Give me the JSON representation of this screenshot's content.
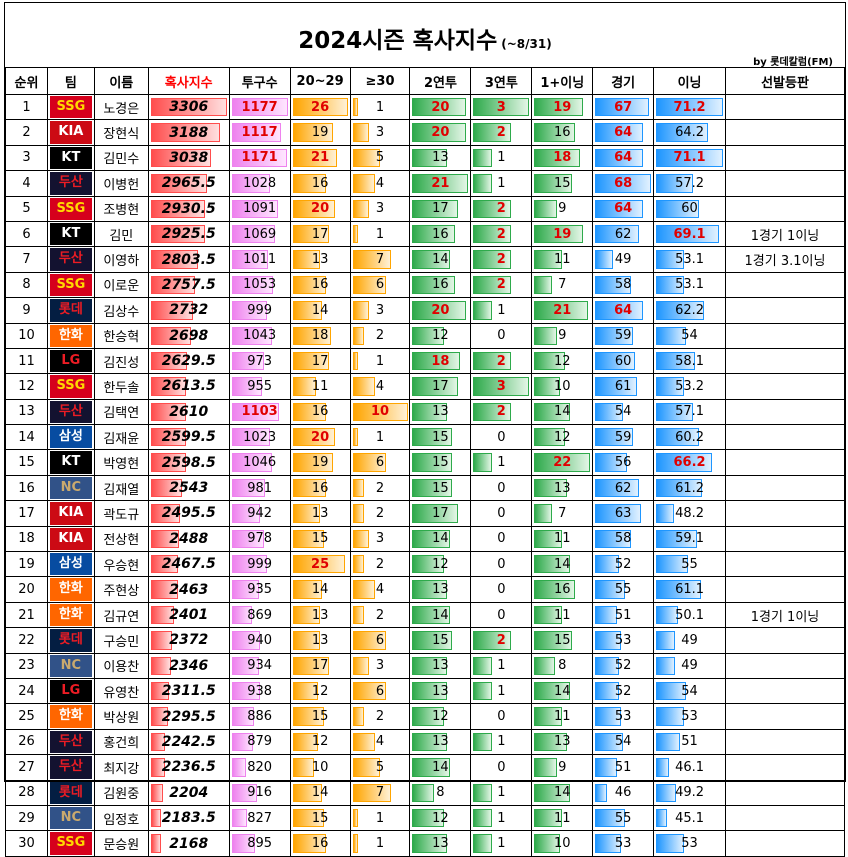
{
  "title": "2024시즌 혹사지수",
  "subtitle": "(~8/31)",
  "credit": "by 롯데칼럼(FM)",
  "headers": [
    "순위",
    "팀",
    "이름",
    "혹사지수",
    "투구수",
    "20~29",
    "≥30",
    "2연투",
    "3연투",
    "1+이닝",
    "경기",
    "이닝",
    "선발등판"
  ],
  "teams": {
    "SSG": {
      "bg": "#d6001c",
      "fg": "#ffd800"
    },
    "KIA": {
      "bg": "#cc0a14",
      "fg": "#ffffff"
    },
    "KT": {
      "bg": "#000000",
      "fg": "#ffffff"
    },
    "두산": {
      "bg": "#131230",
      "fg": "#ed1c24"
    },
    "롯데": {
      "bg": "#041e42",
      "fg": "#ed1c24"
    },
    "한화": {
      "bg": "#ff6600",
      "fg": "#ffffff"
    },
    "LG": {
      "bg": "#000000",
      "fg": "#ed1c24"
    },
    "삼성": {
      "bg": "#074ca1",
      "fg": "#ffffff"
    },
    "NC": {
      "bg": "#315288",
      "fg": "#c9a96e"
    }
  },
  "rows": [
    {
      "rank": "1",
      "team": "SSG",
      "name": "노경은",
      "index": "3306",
      "pitches": "1177",
      "p2029": "26",
      "p30": "1",
      "back2": "20",
      "back3": "3",
      "inn1": "19",
      "games": "67",
      "innings": "71.2",
      "start": ""
    },
    {
      "rank": "2",
      "team": "KIA",
      "name": "장현식",
      "index": "3188",
      "pitches": "1117",
      "p2029": "19",
      "p30": "3",
      "back2": "20",
      "back3": "2",
      "inn1": "16",
      "games": "64",
      "innings": "64.2",
      "start": ""
    },
    {
      "rank": "3",
      "team": "KT",
      "name": "김민수",
      "index": "3038",
      "pitches": "1171",
      "p2029": "21",
      "p30": "5",
      "back2": "13",
      "back3": "1",
      "inn1": "18",
      "games": "64",
      "innings": "71.1",
      "start": ""
    },
    {
      "rank": "4",
      "team": "두산",
      "name": "이병헌",
      "index": "2965.5",
      "pitches": "1028",
      "p2029": "16",
      "p30": "4",
      "back2": "21",
      "back3": "1",
      "inn1": "15",
      "games": "68",
      "innings": "57.2",
      "start": ""
    },
    {
      "rank": "5",
      "team": "SSG",
      "name": "조병현",
      "index": "2930.5",
      "pitches": "1091",
      "p2029": "20",
      "p30": "3",
      "back2": "17",
      "back3": "2",
      "inn1": "9",
      "games": "64",
      "innings": "60",
      "start": ""
    },
    {
      "rank": "6",
      "team": "KT",
      "name": "김민",
      "index": "2925.5",
      "pitches": "1069",
      "p2029": "17",
      "p30": "1",
      "back2": "16",
      "back3": "2",
      "inn1": "19",
      "games": "62",
      "innings": "69.1",
      "start": "1경기 1이닝"
    },
    {
      "rank": "7",
      "team": "두산",
      "name": "이영하",
      "index": "2803.5",
      "pitches": "1011",
      "p2029": "13",
      "p30": "7",
      "back2": "14",
      "back3": "2",
      "inn1": "11",
      "games": "49",
      "innings": "53.1",
      "start": "1경기 3.1이닝"
    },
    {
      "rank": "8",
      "team": "SSG",
      "name": "이로운",
      "index": "2757.5",
      "pitches": "1053",
      "p2029": "16",
      "p30": "6",
      "back2": "16",
      "back3": "2",
      "inn1": "7",
      "games": "58",
      "innings": "53.1",
      "start": ""
    },
    {
      "rank": "9",
      "team": "롯데",
      "name": "김상수",
      "index": "2732",
      "pitches": "999",
      "p2029": "14",
      "p30": "3",
      "back2": "20",
      "back3": "1",
      "inn1": "21",
      "games": "64",
      "innings": "62.2",
      "start": ""
    },
    {
      "rank": "10",
      "team": "한화",
      "name": "한승혁",
      "index": "2698",
      "pitches": "1043",
      "p2029": "18",
      "p30": "2",
      "back2": "12",
      "back3": "0",
      "inn1": "9",
      "games": "59",
      "innings": "54",
      "start": ""
    },
    {
      "rank": "11",
      "team": "LG",
      "name": "김진성",
      "index": "2629.5",
      "pitches": "973",
      "p2029": "17",
      "p30": "1",
      "back2": "18",
      "back3": "2",
      "inn1": "12",
      "games": "60",
      "innings": "58.1",
      "start": ""
    },
    {
      "rank": "12",
      "team": "SSG",
      "name": "한두솔",
      "index": "2613.5",
      "pitches": "955",
      "p2029": "11",
      "p30": "4",
      "back2": "17",
      "back3": "3",
      "inn1": "10",
      "games": "61",
      "innings": "53.2",
      "start": ""
    },
    {
      "rank": "13",
      "team": "두산",
      "name": "김택연",
      "index": "2610",
      "pitches": "1103",
      "p2029": "16",
      "p30": "10",
      "back2": "13",
      "back3": "2",
      "inn1": "14",
      "games": "54",
      "innings": "57.1",
      "start": ""
    },
    {
      "rank": "14",
      "team": "삼성",
      "name": "김재윤",
      "index": "2599.5",
      "pitches": "1023",
      "p2029": "20",
      "p30": "1",
      "back2": "15",
      "back3": "0",
      "inn1": "12",
      "games": "59",
      "innings": "60.2",
      "start": ""
    },
    {
      "rank": "15",
      "team": "KT",
      "name": "박영현",
      "index": "2598.5",
      "pitches": "1046",
      "p2029": "19",
      "p30": "6",
      "back2": "15",
      "back3": "1",
      "inn1": "22",
      "games": "56",
      "innings": "66.2",
      "start": ""
    },
    {
      "rank": "16",
      "team": "NC",
      "name": "김재열",
      "index": "2543",
      "pitches": "981",
      "p2029": "16",
      "p30": "2",
      "back2": "15",
      "back3": "0",
      "inn1": "13",
      "games": "62",
      "innings": "61.2",
      "start": ""
    },
    {
      "rank": "17",
      "team": "KIA",
      "name": "곽도규",
      "index": "2495.5",
      "pitches": "942",
      "p2029": "13",
      "p30": "2",
      "back2": "17",
      "back3": "0",
      "inn1": "7",
      "games": "63",
      "innings": "48.2",
      "start": ""
    },
    {
      "rank": "18",
      "team": "KIA",
      "name": "전상현",
      "index": "2488",
      "pitches": "978",
      "p2029": "15",
      "p30": "3",
      "back2": "14",
      "back3": "0",
      "inn1": "11",
      "games": "58",
      "innings": "59.1",
      "start": ""
    },
    {
      "rank": "19",
      "team": "삼성",
      "name": "우승현",
      "index": "2467.5",
      "pitches": "999",
      "p2029": "25",
      "p30": "2",
      "back2": "12",
      "back3": "0",
      "inn1": "14",
      "games": "52",
      "innings": "55",
      "start": ""
    },
    {
      "rank": "20",
      "team": "한화",
      "name": "주현상",
      "index": "2463",
      "pitches": "935",
      "p2029": "14",
      "p30": "4",
      "back2": "13",
      "back3": "0",
      "inn1": "16",
      "games": "55",
      "innings": "61.1",
      "start": ""
    },
    {
      "rank": "21",
      "team": "한화",
      "name": "김규연",
      "index": "2401",
      "pitches": "869",
      "p2029": "13",
      "p30": "2",
      "back2": "14",
      "back3": "0",
      "inn1": "11",
      "games": "51",
      "innings": "50.1",
      "start": "1경기 1이닝"
    },
    {
      "rank": "22",
      "team": "롯데",
      "name": "구승민",
      "index": "2372",
      "pitches": "940",
      "p2029": "13",
      "p30": "6",
      "back2": "15",
      "back3": "2",
      "inn1": "15",
      "games": "53",
      "innings": "49",
      "start": ""
    },
    {
      "rank": "23",
      "team": "NC",
      "name": "이용찬",
      "index": "2346",
      "pitches": "934",
      "p2029": "17",
      "p30": "3",
      "back2": "13",
      "back3": "1",
      "inn1": "8",
      "games": "52",
      "innings": "49",
      "start": ""
    },
    {
      "rank": "24",
      "team": "LG",
      "name": "유영찬",
      "index": "2311.5",
      "pitches": "938",
      "p2029": "12",
      "p30": "6",
      "back2": "13",
      "back3": "1",
      "inn1": "14",
      "games": "52",
      "innings": "54",
      "start": ""
    },
    {
      "rank": "25",
      "team": "한화",
      "name": "박상원",
      "index": "2295.5",
      "pitches": "886",
      "p2029": "15",
      "p30": "2",
      "back2": "12",
      "back3": "0",
      "inn1": "11",
      "games": "53",
      "innings": "53",
      "start": ""
    },
    {
      "rank": "26",
      "team": "두산",
      "name": "홍건희",
      "index": "2242.5",
      "pitches": "879",
      "p2029": "12",
      "p30": "4",
      "back2": "13",
      "back3": "1",
      "inn1": "13",
      "games": "54",
      "innings": "51",
      "start": ""
    },
    {
      "rank": "27",
      "team": "두산",
      "name": "최지강",
      "index": "2236.5",
      "pitches": "820",
      "p2029": "10",
      "p30": "5",
      "back2": "14",
      "back3": "0",
      "inn1": "9",
      "games": "51",
      "innings": "46.1",
      "start": ""
    },
    {
      "rank": "28",
      "team": "롯데",
      "name": "김원중",
      "index": "2204",
      "pitches": "916",
      "p2029": "14",
      "p30": "7",
      "back2": "8",
      "back3": "1",
      "inn1": "14",
      "games": "46",
      "innings": "49.2",
      "start": ""
    },
    {
      "rank": "29",
      "team": "NC",
      "name": "임정호",
      "index": "2183.5",
      "pitches": "827",
      "p2029": "15",
      "p30": "1",
      "back2": "12",
      "back3": "1",
      "inn1": "11",
      "games": "55",
      "innings": "45.1",
      "start": ""
    },
    {
      "rank": "30",
      "team": "SSG",
      "name": "문승원",
      "index": "2168",
      "pitches": "895",
      "p2029": "16",
      "p30": "1",
      "back2": "13",
      "back3": "1",
      "inn1": "10",
      "games": "53",
      "innings": "53",
      "start": ""
    }
  ]
}
